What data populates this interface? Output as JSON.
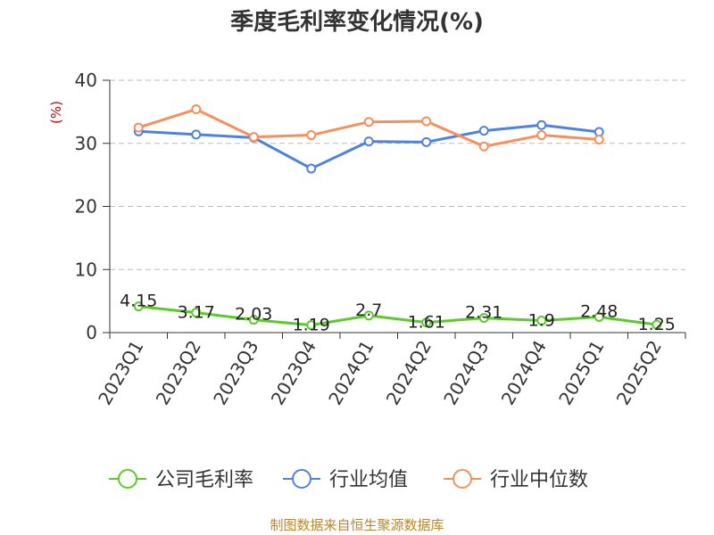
{
  "chart_data": {
    "type": "line",
    "title": "季度毛利率变化情况(%)",
    "ylabel": "(%)",
    "xlabel": "",
    "ylim": [
      0,
      40
    ],
    "yticks": [
      0,
      10,
      20,
      30,
      40
    ],
    "grid": true,
    "legend_position": "bottom",
    "categories": [
      "2023Q1",
      "2023Q2",
      "2023Q3",
      "2023Q4",
      "2024Q1",
      "2024Q2",
      "2024Q3",
      "2024Q4",
      "2025Q1",
      "2025Q2"
    ],
    "series": [
      {
        "name": "公司毛利率",
        "color": "#5cc92c",
        "values": [
          4.15,
          3.17,
          2.03,
          1.19,
          2.7,
          1.61,
          2.31,
          1.9,
          2.48,
          1.25
        ],
        "labels": [
          "4.15",
          "3.17",
          "2.03",
          "1.19",
          "2.7",
          "1.61",
          "2.31",
          "1.9",
          "2.48",
          "1.25"
        ]
      },
      {
        "name": "行业均值",
        "color": "#4f82e0",
        "values": [
          31.9,
          31.4,
          30.9,
          26.0,
          30.3,
          30.2,
          32.0,
          32.9,
          31.8,
          null
        ]
      },
      {
        "name": "行业中位数",
        "color": "#f5905c",
        "values": [
          32.5,
          35.4,
          31.0,
          31.3,
          33.4,
          33.5,
          29.5,
          31.3,
          30.6,
          null
        ]
      }
    ]
  },
  "footer": {
    "source": "制图数据来自恒生聚源数据库"
  }
}
